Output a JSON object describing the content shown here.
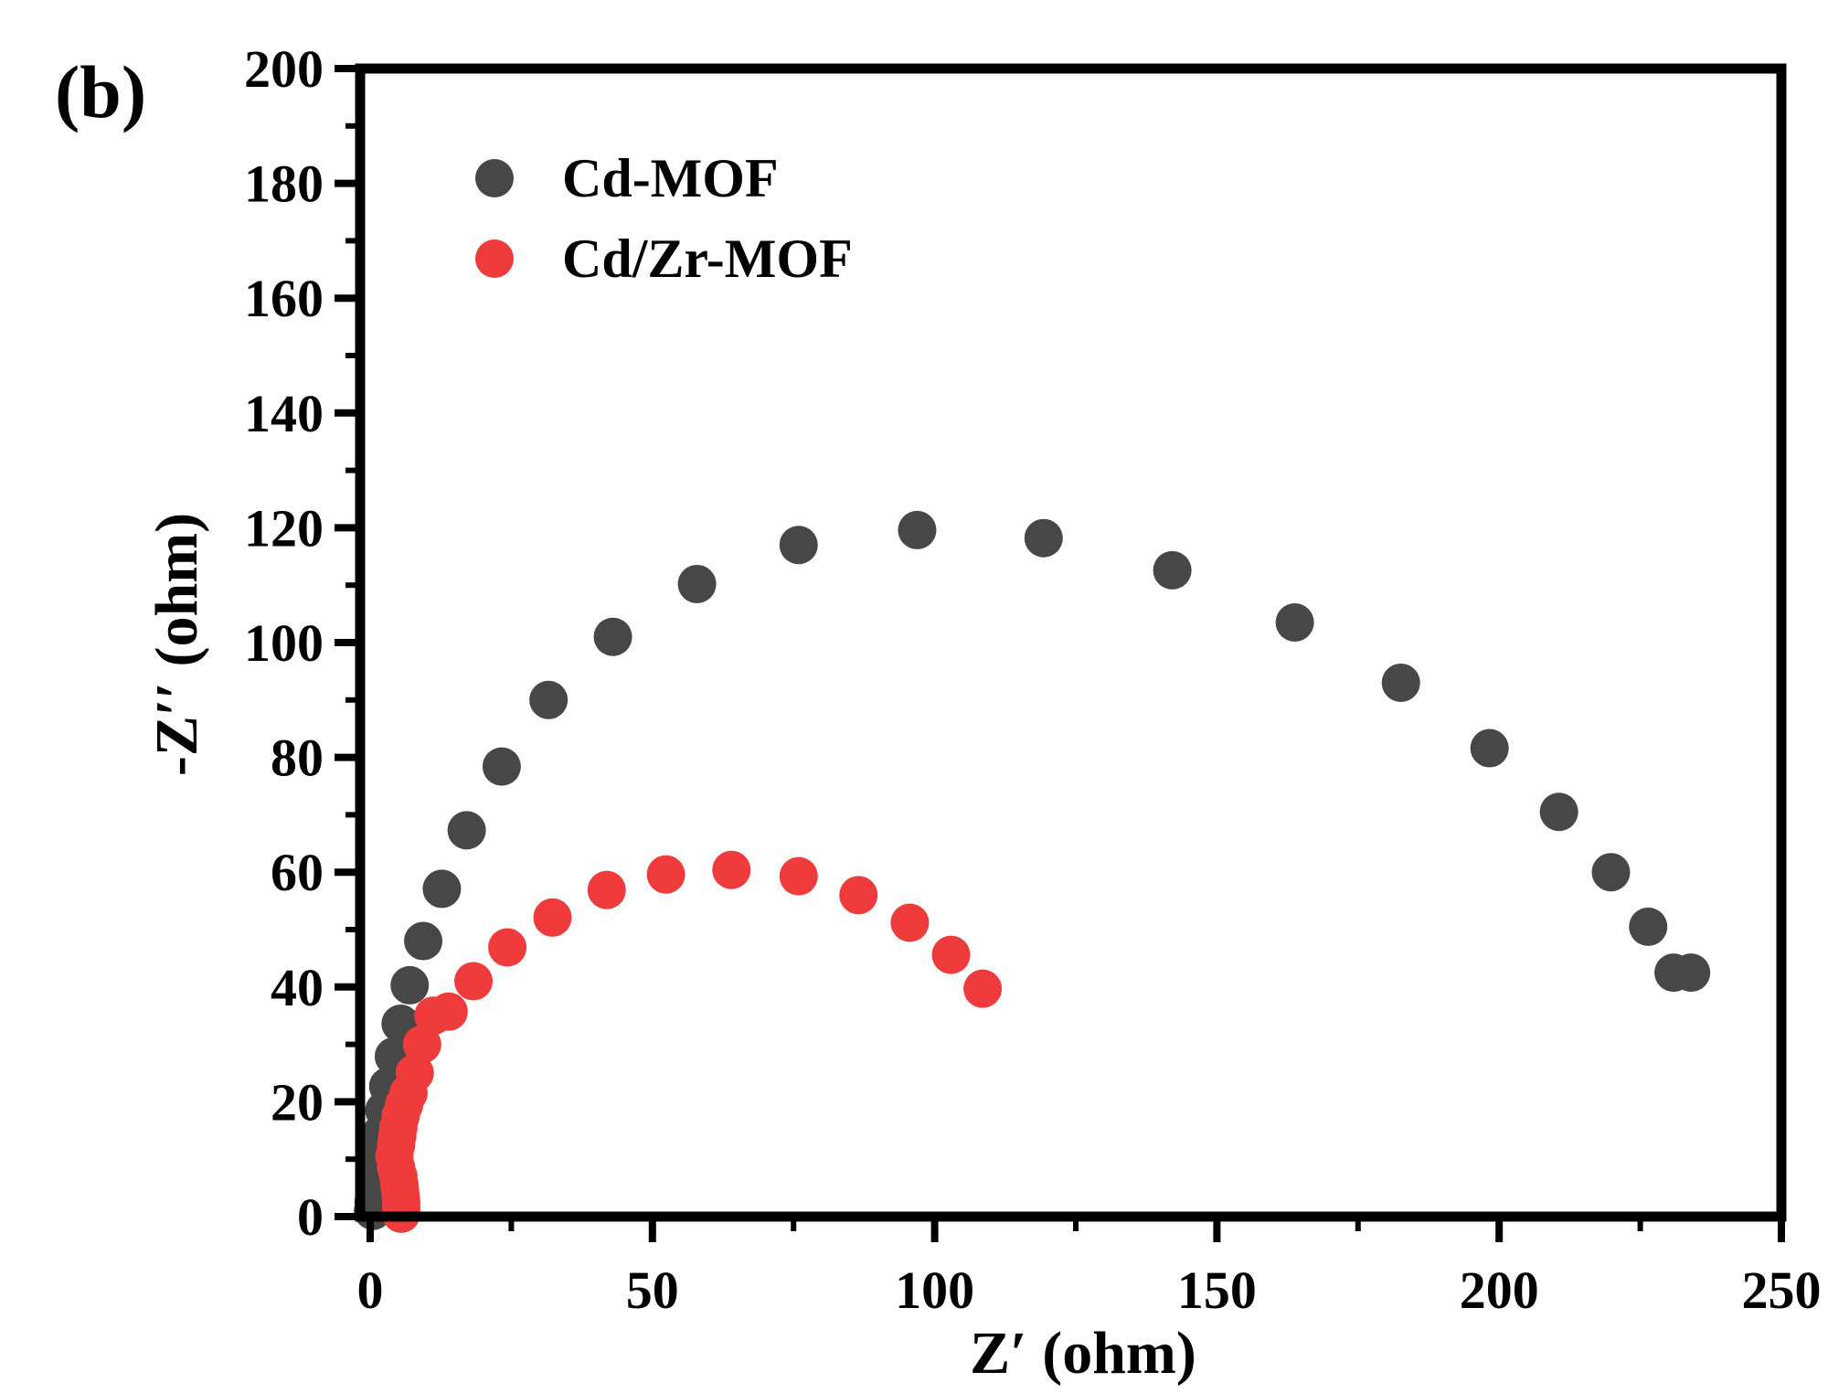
{
  "panel_label": "(b)",
  "chart_data": {
    "type": "scatter",
    "xlabel": "Z′ (ohm)",
    "ylabel": "-Z′′ (ohm)",
    "xlim": [
      0,
      250
    ],
    "ylim": [
      0,
      200
    ],
    "xticks": [
      0,
      50,
      100,
      150,
      200,
      250
    ],
    "yticks": [
      0,
      20,
      40,
      60,
      80,
      100,
      120,
      140,
      160,
      180,
      200
    ],
    "grid": false,
    "legend_position": "top-left",
    "series": [
      {
        "name": "Cd-MOF",
        "color": "#474747",
        "x": [
          0.5,
          0.6,
          0.8,
          1.0,
          1.3,
          1.6,
          2.0,
          2.5,
          3.2,
          4.2,
          5.4,
          7.0,
          9.4,
          12.7,
          17.1,
          23.3,
          31.6,
          43.0,
          57.9,
          75.9,
          96.9,
          119.3,
          142.1,
          163.8,
          182.6,
          198.3,
          210.6,
          219.8,
          226.4,
          230.9,
          234.0
        ],
        "y": [
          1.0,
          2.5,
          4.5,
          6.5,
          9.0,
          11.5,
          14.5,
          18.5,
          22.7,
          27.9,
          33.6,
          40.3,
          48.0,
          57.1,
          67.3,
          78.4,
          90.0,
          101.0,
          110.2,
          117.0,
          119.6,
          118.2,
          112.6,
          103.5,
          93.0,
          81.6,
          70.5,
          60.0,
          50.5,
          42.5,
          42.5
        ]
      },
      {
        "name": "Cd/Zr-MOF",
        "color": "#ef3b3b",
        "x": [
          5.5,
          5.5,
          5.5,
          5.4,
          5.3,
          5.2,
          5.0,
          4.6,
          4.3,
          4.6,
          4.8,
          5.0,
          5.4,
          6.0,
          6.8,
          7.9,
          9.2,
          11.2,
          13.9,
          18.3,
          24.3,
          32.3,
          41.9,
          52.4,
          64.0,
          75.9,
          86.5,
          95.6,
          102.9,
          108.5
        ],
        "y": [
          0.5,
          1.5,
          2.5,
          3.5,
          4.5,
          5.5,
          7.0,
          8.5,
          10.5,
          12.5,
          14.0,
          15.5,
          17.5,
          19.5,
          21.5,
          25.0,
          30.0,
          35.0,
          35.7,
          41.0,
          46.9,
          52.1,
          56.9,
          59.6,
          60.4,
          59.3,
          56.0,
          51.2,
          45.6,
          39.7
        ]
      }
    ]
  }
}
